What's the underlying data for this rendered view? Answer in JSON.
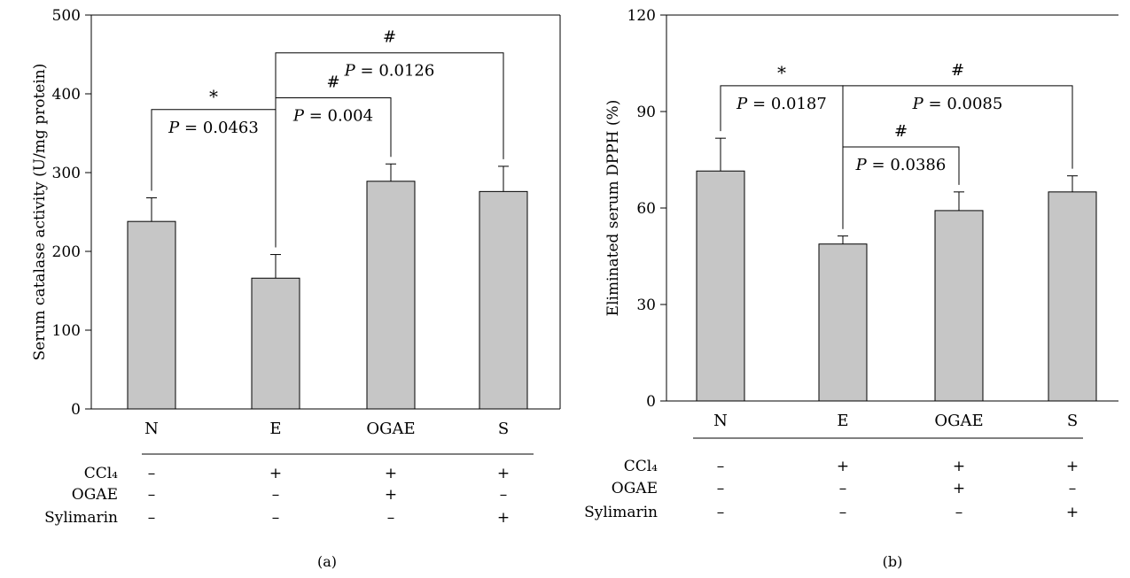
{
  "chart_data": [
    {
      "type": "bar",
      "panel_label": "(a)",
      "ylabel": "Serum catalase activity (U/mg protein)",
      "ylim": [
        0,
        500
      ],
      "yticks": [
        0,
        100,
        200,
        300,
        400,
        500
      ],
      "categories": [
        "N",
        "E",
        "OGAE",
        "S"
      ],
      "values": [
        238,
        166,
        289,
        276
      ],
      "errors": [
        30,
        30,
        22,
        32
      ],
      "annotations": [
        {
          "from": 0,
          "to": 1,
          "symbol": "*",
          "p_prefix": "P",
          "p_value": "= 0.0463",
          "level": 380
        },
        {
          "from": 1,
          "to": 2,
          "symbol": "#",
          "p_prefix": "P",
          "p_value": "= 0.004",
          "level": 395
        },
        {
          "from": 1,
          "to": 3,
          "symbol": "#",
          "p_prefix": "P",
          "p_value": "= 0.0126",
          "level": 452
        }
      ],
      "treatment_table": [
        {
          "label": "CCl₄",
          "marks": [
            "–",
            "+",
            "+",
            "+"
          ]
        },
        {
          "label": "OGAE",
          "marks": [
            "–",
            "–",
            "+",
            "–"
          ]
        },
        {
          "label": "Sylimarin",
          "marks": [
            "–",
            "–",
            "–",
            "+"
          ]
        }
      ]
    },
    {
      "type": "bar",
      "panel_label": "(b)",
      "ylabel": "Eliminated serum DPPH (%)",
      "ylim": [
        0,
        120
      ],
      "yticks": [
        0,
        30,
        60,
        90,
        120
      ],
      "categories": [
        "N",
        "E",
        "OGAE",
        "S"
      ],
      "values": [
        71.5,
        48.8,
        59.2,
        65.0
      ],
      "errors": [
        10.2,
        2.5,
        5.8,
        5.0
      ],
      "annotations": [
        {
          "from": 0,
          "to": 1,
          "symbol": "*",
          "p_prefix": "P",
          "p_value": "= 0.0187",
          "level": 98
        },
        {
          "from": 1,
          "to": 3,
          "symbol": "#",
          "p_prefix": "P",
          "p_value": "= 0.0085",
          "level": 98
        },
        {
          "from": 1,
          "to": 2,
          "symbol": "#",
          "p_prefix": "P",
          "p_value": "= 0.0386",
          "level": 79
        }
      ],
      "treatment_table": [
        {
          "label": "CCl₄",
          "marks": [
            "–",
            "+",
            "+",
            "+"
          ]
        },
        {
          "label": "OGAE",
          "marks": [
            "–",
            "–",
            "+",
            "–"
          ]
        },
        {
          "label": "Sylimarin",
          "marks": [
            "–",
            "–",
            "–",
            "+"
          ]
        }
      ]
    }
  ]
}
